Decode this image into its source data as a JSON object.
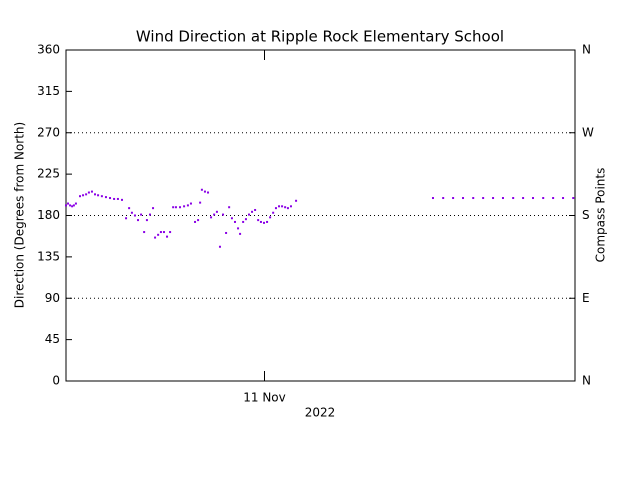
{
  "chart_data": {
    "type": "scatter",
    "title": "Wind Direction at Ripple Rock Elementary School",
    "ylabel": "Direction (Degrees from North)",
    "xlabel": "2022",
    "y2label": "Compass Points",
    "color": "#8a00e6",
    "x": [
      10.22,
      10.228,
      10.236,
      10.244,
      10.251,
      10.259,
      10.275,
      10.287,
      10.299,
      10.31,
      10.322,
      10.334,
      10.346,
      10.361,
      10.377,
      10.393,
      10.409,
      10.424,
      10.44,
      10.456,
      10.468,
      10.479,
      10.491,
      10.503,
      10.515,
      10.527,
      10.538,
      10.55,
      10.562,
      10.57,
      10.582,
      10.593,
      10.605,
      10.617,
      10.629,
      10.641,
      10.652,
      10.668,
      10.684,
      10.699,
      10.711,
      10.727,
      10.739,
      10.747,
      10.754,
      10.766,
      10.778,
      10.79,
      10.802,
      10.813,
      10.825,
      10.837,
      10.849,
      10.861,
      10.872,
      10.884,
      10.896,
      10.904,
      10.916,
      10.927,
      10.939,
      10.951,
      10.963,
      10.975,
      10.986,
      10.998,
      11.01,
      11.022,
      11.034,
      11.045,
      11.057,
      11.069,
      11.081,
      11.092,
      11.104,
      11.124,
      11.662,
      11.702,
      11.741,
      11.78,
      11.82,
      11.859,
      11.898,
      11.937,
      11.977,
      12.016,
      12.055,
      12.095,
      12.134,
      12.173,
      12.213
    ],
    "values": [
      191,
      193,
      191,
      190,
      191,
      193,
      201,
      202,
      203,
      205,
      206,
      203,
      202,
      201,
      200,
      199,
      198,
      198,
      197,
      177,
      188,
      183,
      180,
      175,
      181,
      162,
      175,
      181,
      188,
      156,
      159,
      162,
      162,
      157,
      162,
      189,
      189,
      189,
      190,
      191,
      193,
      173,
      175,
      194,
      208,
      206,
      205,
      178,
      181,
      184,
      146,
      181,
      161,
      189,
      177,
      173,
      166,
      160,
      173,
      176,
      181,
      184,
      186,
      175,
      173,
      172,
      173,
      178,
      183,
      188,
      190,
      190,
      189,
      188,
      190,
      196,
      199,
      199,
      199,
      199,
      199,
      199,
      199,
      199,
      199,
      199,
      199,
      199,
      199,
      199,
      199
    ],
    "xlim": [
      10.22,
      12.22
    ],
    "xticks": [
      {
        "value": 11,
        "label": "11 Nov"
      }
    ],
    "ylim": [
      0,
      360
    ],
    "yticks": [
      0,
      45,
      90,
      135,
      180,
      225,
      270,
      315,
      360
    ],
    "y2lim": [
      0,
      360
    ],
    "y2ticks": [
      {
        "value": 0,
        "label": "N"
      },
      {
        "value": 90,
        "label": "E"
      },
      {
        "value": 180,
        "label": "S"
      },
      {
        "value": 270,
        "label": "W"
      },
      {
        "value": 360,
        "label": "N"
      }
    ],
    "grid": true
  }
}
